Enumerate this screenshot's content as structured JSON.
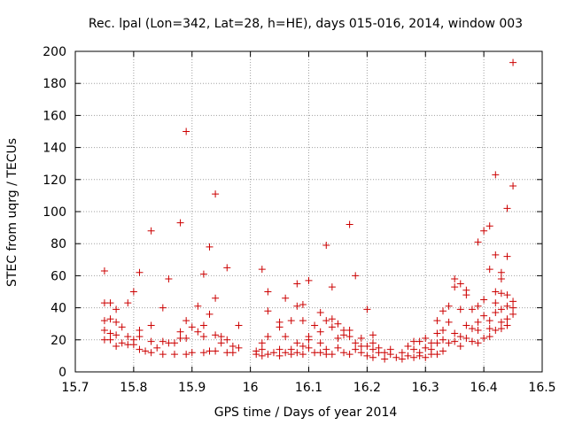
{
  "chart_data": {
    "type": "scatter",
    "title": "Rec. lpal (Lon=342, Lat=28, h=HE), days 015-016, 2014, window 003",
    "xlabel": "GPS time / Days of year 2014",
    "ylabel": "STEC from uqrg / TECUs",
    "xlim": [
      15.7,
      16.5
    ],
    "ylim": [
      0,
      200
    ],
    "xticks": [
      "15.7",
      "15.8",
      "15.9",
      "16",
      "16.1",
      "16.2",
      "16.3",
      "16.4",
      "16.5"
    ],
    "yticks": [
      "0",
      "20",
      "40",
      "60",
      "80",
      "100",
      "120",
      "140",
      "160",
      "180",
      "200"
    ],
    "grid": true,
    "marker": "+",
    "color": "#cc0000",
    "points": [
      [
        15.75,
        63
      ],
      [
        15.75,
        43
      ],
      [
        15.75,
        32
      ],
      [
        15.75,
        26
      ],
      [
        15.75,
        20
      ],
      [
        15.76,
        43
      ],
      [
        15.76,
        33
      ],
      [
        15.76,
        24
      ],
      [
        15.76,
        20
      ],
      [
        15.77,
        39
      ],
      [
        15.77,
        31
      ],
      [
        15.77,
        23
      ],
      [
        15.77,
        16
      ],
      [
        15.78,
        28
      ],
      [
        15.78,
        18
      ],
      [
        15.79,
        43
      ],
      [
        15.79,
        22
      ],
      [
        15.79,
        17
      ],
      [
        15.8,
        50
      ],
      [
        15.8,
        20
      ],
      [
        15.8,
        17
      ],
      [
        15.81,
        62
      ],
      [
        15.81,
        26
      ],
      [
        15.81,
        22
      ],
      [
        15.81,
        14
      ],
      [
        15.82,
        13
      ],
      [
        15.83,
        88
      ],
      [
        15.83,
        29
      ],
      [
        15.83,
        19
      ],
      [
        15.83,
        12
      ],
      [
        15.84,
        15
      ],
      [
        15.85,
        40
      ],
      [
        15.85,
        19
      ],
      [
        15.85,
        11
      ],
      [
        15.86,
        58
      ],
      [
        15.86,
        18
      ],
      [
        15.87,
        18
      ],
      [
        15.87,
        11
      ],
      [
        15.88,
        93
      ],
      [
        15.88,
        25
      ],
      [
        15.88,
        21
      ],
      [
        15.89,
        150
      ],
      [
        15.89,
        32
      ],
      [
        15.89,
        21
      ],
      [
        15.89,
        11
      ],
      [
        15.9,
        28
      ],
      [
        15.9,
        12
      ],
      [
        15.91,
        41
      ],
      [
        15.91,
        25
      ],
      [
        15.92,
        61
      ],
      [
        15.92,
        29
      ],
      [
        15.92,
        22
      ],
      [
        15.92,
        12
      ],
      [
        15.93,
        78
      ],
      [
        15.93,
        36
      ],
      [
        15.93,
        13
      ],
      [
        15.94,
        111
      ],
      [
        15.94,
        46
      ],
      [
        15.94,
        23
      ],
      [
        15.94,
        13
      ],
      [
        15.95,
        22
      ],
      [
        15.95,
        18
      ],
      [
        15.96,
        65
      ],
      [
        15.96,
        20
      ],
      [
        15.96,
        12
      ],
      [
        15.97,
        16
      ],
      [
        15.97,
        12
      ],
      [
        15.98,
        29
      ],
      [
        15.98,
        15
      ],
      [
        16.01,
        13
      ],
      [
        16.01,
        11
      ],
      [
        16.02,
        64
      ],
      [
        16.02,
        18
      ],
      [
        16.02,
        14
      ],
      [
        16.02,
        10
      ],
      [
        16.03,
        50
      ],
      [
        16.03,
        38
      ],
      [
        16.03,
        22
      ],
      [
        16.03,
        11
      ],
      [
        16.04,
        12
      ],
      [
        16.05,
        31
      ],
      [
        16.05,
        28
      ],
      [
        16.05,
        14
      ],
      [
        16.05,
        10
      ],
      [
        16.06,
        46
      ],
      [
        16.06,
        22
      ],
      [
        16.06,
        12
      ],
      [
        16.07,
        32
      ],
      [
        16.07,
        14
      ],
      [
        16.07,
        11
      ],
      [
        16.08,
        55
      ],
      [
        16.08,
        41
      ],
      [
        16.08,
        18
      ],
      [
        16.08,
        12
      ],
      [
        16.09,
        42
      ],
      [
        16.09,
        32
      ],
      [
        16.09,
        16
      ],
      [
        16.09,
        11
      ],
      [
        16.1,
        57
      ],
      [
        16.1,
        22
      ],
      [
        16.1,
        20
      ],
      [
        16.1,
        15
      ],
      [
        16.11,
        29
      ],
      [
        16.11,
        12
      ],
      [
        16.12,
        37
      ],
      [
        16.12,
        25
      ],
      [
        16.12,
        18
      ],
      [
        16.12,
        12
      ],
      [
        16.13,
        79
      ],
      [
        16.13,
        32
      ],
      [
        16.13,
        14
      ],
      [
        16.13,
        11
      ],
      [
        16.14,
        53
      ],
      [
        16.14,
        33
      ],
      [
        16.14,
        28
      ],
      [
        16.14,
        11
      ],
      [
        16.15,
        30
      ],
      [
        16.15,
        21
      ],
      [
        16.15,
        15
      ],
      [
        16.16,
        26
      ],
      [
        16.16,
        23
      ],
      [
        16.16,
        12
      ],
      [
        16.17,
        92
      ],
      [
        16.17,
        26
      ],
      [
        16.17,
        22
      ],
      [
        16.17,
        11
      ],
      [
        16.18,
        60
      ],
      [
        16.18,
        18
      ],
      [
        16.18,
        14
      ],
      [
        16.19,
        21
      ],
      [
        16.19,
        16
      ],
      [
        16.19,
        12
      ],
      [
        16.2,
        39
      ],
      [
        16.2,
        16
      ],
      [
        16.2,
        10
      ],
      [
        16.21,
        23
      ],
      [
        16.21,
        18
      ],
      [
        16.21,
        14
      ],
      [
        16.21,
        9
      ],
      [
        16.22,
        15
      ],
      [
        16.22,
        12
      ],
      [
        16.23,
        12
      ],
      [
        16.23,
        8
      ],
      [
        16.24,
        14
      ],
      [
        16.24,
        11
      ],
      [
        16.25,
        9
      ],
      [
        16.26,
        12
      ],
      [
        16.26,
        8
      ],
      [
        16.27,
        16
      ],
      [
        16.27,
        10
      ],
      [
        16.28,
        19
      ],
      [
        16.28,
        14
      ],
      [
        16.28,
        9
      ],
      [
        16.29,
        19
      ],
      [
        16.29,
        12
      ],
      [
        16.29,
        10
      ],
      [
        16.3,
        21
      ],
      [
        16.3,
        15
      ],
      [
        16.3,
        9
      ],
      [
        16.31,
        18
      ],
      [
        16.31,
        14
      ],
      [
        16.31,
        11
      ],
      [
        16.32,
        32
      ],
      [
        16.32,
        24
      ],
      [
        16.32,
        18
      ],
      [
        16.32,
        11
      ],
      [
        16.33,
        38
      ],
      [
        16.33,
        26
      ],
      [
        16.33,
        20
      ],
      [
        16.33,
        13
      ],
      [
        16.34,
        41
      ],
      [
        16.34,
        31
      ],
      [
        16.34,
        18
      ],
      [
        16.35,
        58
      ],
      [
        16.35,
        53
      ],
      [
        16.35,
        24
      ],
      [
        16.35,
        19
      ],
      [
        16.36,
        55
      ],
      [
        16.36,
        39
      ],
      [
        16.36,
        22
      ],
      [
        16.36,
        16
      ],
      [
        16.37,
        51
      ],
      [
        16.37,
        48
      ],
      [
        16.37,
        29
      ],
      [
        16.37,
        21
      ],
      [
        16.38,
        39
      ],
      [
        16.38,
        27
      ],
      [
        16.38,
        19
      ],
      [
        16.39,
        81
      ],
      [
        16.39,
        41
      ],
      [
        16.39,
        31
      ],
      [
        16.39,
        26
      ],
      [
        16.39,
        18
      ],
      [
        16.4,
        88
      ],
      [
        16.4,
        45
      ],
      [
        16.4,
        35
      ],
      [
        16.4,
        21
      ],
      [
        16.41,
        91
      ],
      [
        16.41,
        64
      ],
      [
        16.41,
        32
      ],
      [
        16.41,
        27
      ],
      [
        16.41,
        22
      ],
      [
        16.42,
        123
      ],
      [
        16.42,
        73
      ],
      [
        16.42,
        50
      ],
      [
        16.42,
        43
      ],
      [
        16.42,
        37
      ],
      [
        16.42,
        26
      ],
      [
        16.43,
        62
      ],
      [
        16.43,
        58
      ],
      [
        16.43,
        49
      ],
      [
        16.43,
        39
      ],
      [
        16.43,
        31
      ],
      [
        16.43,
        27
      ],
      [
        16.44,
        102
      ],
      [
        16.44,
        72
      ],
      [
        16.44,
        48
      ],
      [
        16.44,
        41
      ],
      [
        16.44,
        33
      ],
      [
        16.44,
        29
      ],
      [
        16.45,
        193
      ],
      [
        16.45,
        116
      ],
      [
        16.45,
        44
      ],
      [
        16.45,
        40
      ],
      [
        16.45,
        36
      ]
    ]
  }
}
